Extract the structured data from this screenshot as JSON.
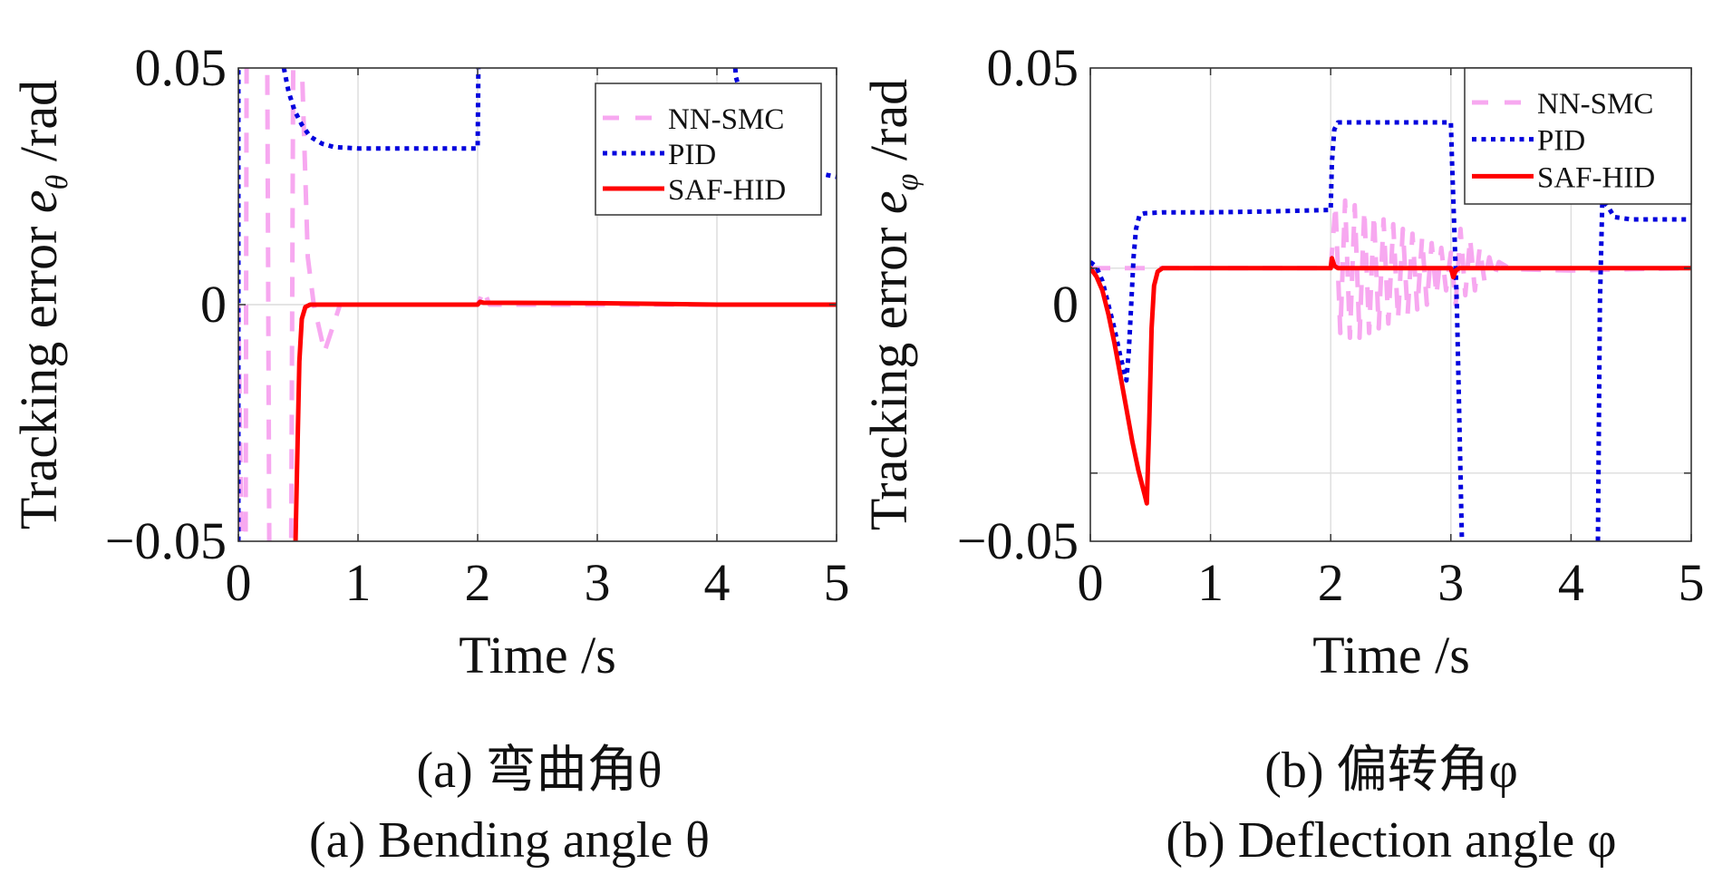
{
  "chart_data": [
    {
      "type": "line",
      "panel": "a",
      "title": "",
      "xlabel": "Time /s",
      "ylabel": "Tracking error e_θ /rad",
      "ylabel_parts": {
        "main": "Tracking error ",
        "var": "e",
        "sub": "θ",
        "unit": " /rad"
      },
      "xlim": [
        0,
        5
      ],
      "ylim": [
        -0.05,
        0.05
      ],
      "xticks": [
        0,
        1,
        2,
        3,
        4,
        5
      ],
      "xtick_labels": [
        "0",
        "1",
        "2",
        "3",
        "4",
        "5"
      ],
      "yticks": [
        0.05,
        0,
        -0.05
      ],
      "ytick_labels": [
        "0.05",
        "0",
        "−0.05"
      ],
      "grid": true,
      "grid_x": [
        1,
        2,
        3,
        4
      ],
      "grid_y": [
        0
      ],
      "legend_position": "top-right",
      "caption_cn": "(a) 弯曲角θ",
      "caption_en": "(a) Bending angle θ",
      "series": [
        {
          "name": "NN-SMC",
          "style": "dashed",
          "color": "#f7a8f0",
          "x": [
            0,
            0.03,
            0.06,
            0.07,
            0.24,
            0.26,
            0.44,
            0.46,
            0.52,
            0.58,
            0.63,
            0.72,
            0.85,
            2.0,
            2.05,
            2.1,
            5.0
          ],
          "y": [
            0,
            -0.06,
            -0.06,
            0.06,
            0.06,
            -0.06,
            -0.06,
            0.06,
            0.06,
            0.01,
            0,
            -0.01,
            0,
            0,
            0.003,
            0,
            0
          ]
        },
        {
          "name": "PID",
          "style": "dotted",
          "color": "#0000dd",
          "segments": [
            {
              "x": [
                0,
                0
              ],
              "y": [
                -0.06,
                0.06
              ]
            },
            {
              "x": [
                0.33,
                0.38,
                0.42,
                0.47,
                0.53,
                0.6,
                0.7,
                0.8,
                1.0,
                1.5,
                2.0,
                2.01
              ],
              "y": [
                0.06,
                0.05,
                0.045,
                0.041,
                0.038,
                0.0355,
                0.034,
                0.0333,
                0.033,
                0.033,
                0.033,
                0.06
              ]
            },
            {
              "x": [
                4.12,
                4.16,
                4.25,
                4.4,
                4.6,
                4.8,
                5.0
              ],
              "y": [
                0.06,
                0.048,
                0.04,
                0.034,
                0.03,
                0.028,
                0.027
              ]
            }
          ]
        },
        {
          "name": "SAF-HID",
          "style": "solid",
          "color": "#ff0000",
          "x": [
            0.47,
            0.49,
            0.51,
            0.53,
            0.56,
            0.6,
            1.0,
            2.0,
            2.02,
            2.05,
            3.0,
            4.0,
            5.0
          ],
          "y": [
            -0.06,
            -0.035,
            -0.012,
            -0.003,
            -0.0005,
            0,
            0,
            0,
            0.0006,
            0.0004,
            0.0003,
            0,
            0
          ]
        }
      ]
    },
    {
      "type": "line",
      "panel": "b",
      "title": "",
      "xlabel": "Time /s",
      "ylabel": "Tracking error e_φ /rad",
      "ylabel_parts": {
        "main": "Tracking error ",
        "var": "e",
        "sub": "φ",
        "unit": " /rad"
      },
      "xlim": [
        0,
        5
      ],
      "ylim": [
        -0.05,
        0.05
      ],
      "xticks": [
        0,
        1,
        2,
        3,
        4,
        5
      ],
      "xtick_labels": [
        "0",
        "1",
        "2",
        "3",
        "4",
        "5"
      ],
      "yticks": [
        0.05,
        0,
        -0.05
      ],
      "ytick_labels": [
        "0.05",
        "0",
        "−0.05"
      ],
      "grid": true,
      "grid_x": [
        1,
        2,
        3,
        4
      ],
      "grid_y": [
        0.0077,
        -0.0356
      ],
      "legend_position": "top-right",
      "caption_cn": "(b) 偏转角φ",
      "caption_en": "(b) Deflection angle φ",
      "series": [
        {
          "name": "NN-SMC",
          "style": "dashed",
          "color": "#f7a8f0",
          "x": [
            0,
            0.4,
            1.0,
            2.0,
            2.04,
            2.08,
            2.12,
            2.16,
            2.2,
            2.24,
            2.28,
            2.32,
            2.36,
            2.4,
            2.44,
            2.48,
            2.52,
            2.56,
            2.6,
            2.64,
            2.68,
            2.72,
            2.76,
            2.8,
            2.84,
            2.88,
            2.92,
            2.96,
            3.0,
            3.04,
            3.08,
            3.12,
            3.16,
            3.2,
            3.24,
            3.28,
            3.32,
            3.36,
            3.4,
            3.5,
            4.0,
            4.5,
            5.0
          ],
          "y": [
            0.0077,
            0.0077,
            0.0077,
            0.0077,
            0.021,
            -0.006,
            0.022,
            -0.007,
            0.021,
            -0.007,
            0.02,
            -0.006,
            0.019,
            -0.005,
            0.018,
            -0.004,
            0.017,
            -0.003,
            0.016,
            -0.002,
            0.015,
            -0.001,
            0.014,
            0.0,
            0.013,
            0.002,
            0.012,
            0.003,
            0.011,
            0.0,
            0.016,
            0.002,
            0.014,
            0.003,
            0.012,
            0.005,
            0.01,
            0.006,
            0.009,
            0.0075,
            0.0072,
            0.0075,
            0.0077
          ]
        },
        {
          "name": "PID",
          "style": "dotted",
          "color": "#0000dd",
          "segments": [
            {
              "x": [
                0,
                0.05,
                0.1,
                0.15,
                0.2,
                0.25,
                0.3,
                0.32,
                0.34,
                0.36,
                0.38,
                0.41,
                0.45,
                0.6,
                1.0,
                1.5,
                2.0,
                2.01,
                2.03,
                2.06,
                2.5,
                3.0,
                3.01,
                3.05,
                3.1
              ],
              "y": [
                0.009,
                0.008,
                0.005,
                0.0,
                -0.005,
                -0.011,
                -0.016,
                -0.01,
                0.0,
                0.01,
                0.016,
                0.019,
                0.0193,
                0.0195,
                0.0195,
                0.0197,
                0.02,
                0.03,
                0.037,
                0.0385,
                0.0385,
                0.0385,
                0.03,
                0.0,
                -0.06
              ]
            },
            {
              "x": [
                4.22,
                4.24,
                4.26,
                4.3,
                4.36,
                4.5,
                5.0
              ],
              "y": [
                -0.06,
                0.0,
                0.022,
                0.021,
                0.0185,
                0.018,
                0.018
              ]
            }
          ]
        },
        {
          "name": "SAF-HID",
          "style": "solid",
          "color": "#ff0000",
          "x": [
            0,
            0.05,
            0.1,
            0.15,
            0.2,
            0.25,
            0.3,
            0.35,
            0.4,
            0.45,
            0.47,
            0.49,
            0.51,
            0.53,
            0.56,
            0.6,
            1.0,
            2.0,
            2.01,
            2.03,
            2.06,
            3.0,
            3.02,
            3.04,
            3.07,
            4.0,
            5.0
          ],
          "y": [
            0.0077,
            0.006,
            0.003,
            -0.002,
            -0.008,
            -0.015,
            -0.022,
            -0.029,
            -0.035,
            -0.04,
            -0.042,
            -0.025,
            -0.005,
            0.004,
            0.007,
            0.0077,
            0.0077,
            0.0077,
            0.0098,
            0.0082,
            0.0077,
            0.0077,
            0.0058,
            0.0072,
            0.0077,
            0.0077,
            0.0077
          ]
        }
      ]
    }
  ]
}
